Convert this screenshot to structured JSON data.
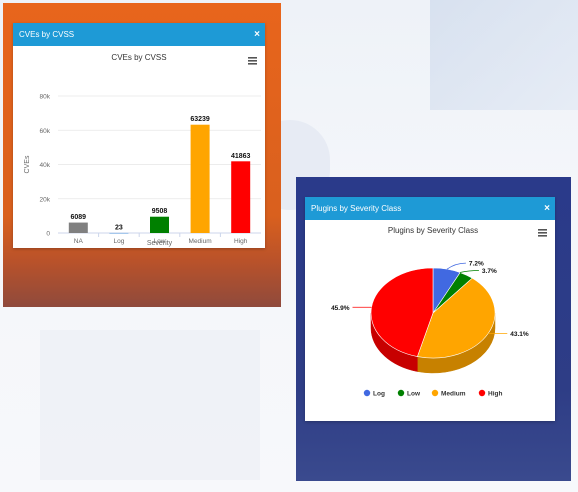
{
  "panel_cves": {
    "title": "CVEs by CVSS",
    "close_label": "×",
    "chart_title": "CVEs by CVSS",
    "menu_icon": "hamburger-menu-icon"
  },
  "panel_plugins": {
    "title": "Plugins by Severity Class",
    "close_label": "×",
    "chart_title": "Plugins by Severity Class",
    "menu_icon": "hamburger-menu-icon"
  },
  "chart_data": [
    {
      "type": "bar",
      "title": "CVEs by CVSS",
      "xlabel": "Severity",
      "ylabel": "CVEs",
      "ylim": [
        0,
        80000
      ],
      "yticks": [
        "0",
        "20k",
        "40k",
        "60k",
        "80k"
      ],
      "grid": true,
      "categories": [
        "NA",
        "Log",
        "Low",
        "Medium",
        "High"
      ],
      "values": [
        6089,
        23,
        9508,
        63239,
        41863
      ],
      "data_labels": [
        "6089",
        "23",
        "9508",
        "63239",
        "41863"
      ],
      "colors": [
        "#808080",
        "#1f77d0",
        "#008000",
        "#ffa500",
        "#ff0000"
      ]
    },
    {
      "type": "pie",
      "title": "Plugins by Severity Class",
      "legend_position": "bottom",
      "slices": [
        {
          "name": "Log",
          "value": 7.2,
          "label": "7.2%",
          "color": "#4169e1"
        },
        {
          "name": "Low",
          "value": 3.7,
          "label": "3.7%",
          "color": "#008000"
        },
        {
          "name": "Medium",
          "value": 43.1,
          "label": "43.1%",
          "color": "#ffa500"
        },
        {
          "name": "High",
          "value": 45.9,
          "label": "45.9%",
          "color": "#ff0000"
        }
      ]
    }
  ]
}
